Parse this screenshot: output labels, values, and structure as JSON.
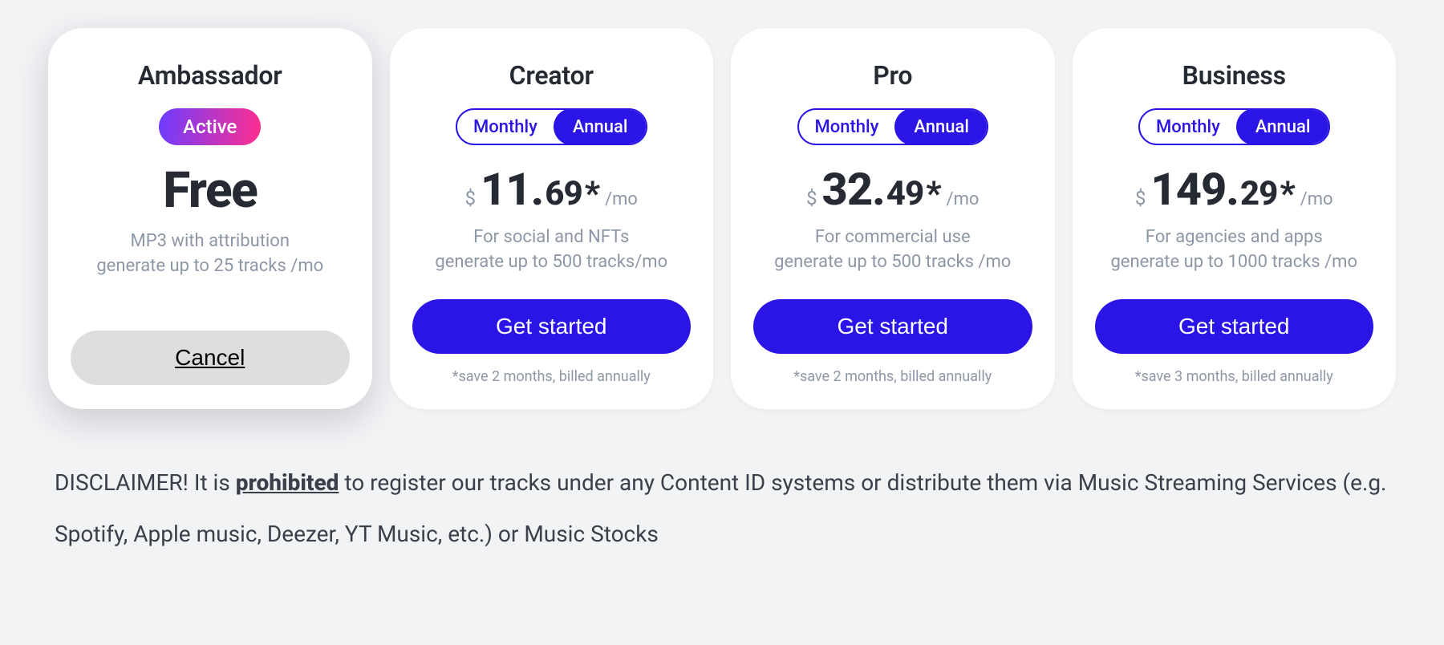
{
  "toggle": {
    "monthly": "Monthly",
    "annual": "Annual"
  },
  "plans": [
    {
      "name": "Ambassador",
      "badge": "Active",
      "price_text": "Free",
      "desc": "MP3 with attribution\ngenerate up to 25 tracks /mo",
      "cta": "Cancel",
      "footnote": ""
    },
    {
      "name": "Creator",
      "currency": "$",
      "price_main": "11.",
      "price_sub": "69",
      "star": "*",
      "per": "/mo",
      "desc": "For social and NFTs\ngenerate up to 500 tracks/mo",
      "cta": "Get started",
      "footnote": "*save 2 months, billed annually"
    },
    {
      "name": "Pro",
      "currency": "$",
      "price_main": "32.",
      "price_sub": "49",
      "star": "*",
      "per": "/mo",
      "desc": "For commercial use\ngenerate up to 500 tracks /mo",
      "cta": "Get started",
      "footnote": "*save 2 months, billed annually"
    },
    {
      "name": "Business",
      "currency": "$",
      "price_main": "149.",
      "price_sub": "29",
      "star": "*",
      "per": "/mo",
      "desc": "For agencies and apps\ngenerate up to 1000 tracks /mo",
      "cta": "Get started",
      "footnote": "*save 3 months, billed annually"
    }
  ],
  "disclaimer": {
    "pre": "DISCLAIMER! It is ",
    "prohibited": "prohibited",
    "post": " to register our tracks under any Content ID systems or distribute them via Music Streaming Services (e.g. Spotify, Apple music, Deezer, YT Music, etc.) or Music Stocks"
  },
  "colors": {
    "primary_blue": "#2a14e6",
    "gradient_from": "#6d3cff",
    "gradient_to": "#ff2f8f",
    "background": "#f2f3f5",
    "card_bg": "#ffffff",
    "text_dark": "#262a33",
    "text_muted": "#8e97a6",
    "cancel_bg": "#dededf"
  }
}
